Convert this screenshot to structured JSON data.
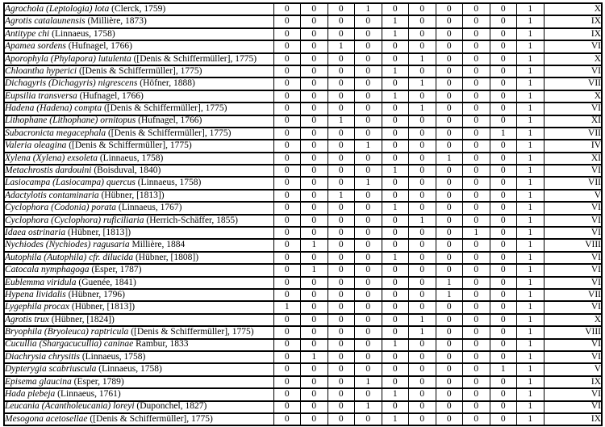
{
  "colors": {
    "text": "#000000",
    "background": "#ffffff",
    "border": "#000000"
  },
  "table": {
    "value_column_count": 10,
    "rows": [
      {
        "taxon": "Agrochola (Leptologia) lota",
        "author": "(Clerck, 1759)",
        "values": [
          0,
          0,
          0,
          1,
          0,
          0,
          0,
          0,
          0,
          1
        ],
        "roman": "X"
      },
      {
        "taxon": "Agrotis catalaunensis",
        "author": "(Millière, 1873)",
        "values": [
          0,
          0,
          0,
          0,
          1,
          0,
          0,
          0,
          0,
          1
        ],
        "roman": "IX"
      },
      {
        "taxon": "Antitype chi",
        "author": "(Linnaeus, 1758)",
        "values": [
          0,
          0,
          0,
          0,
          1,
          0,
          0,
          0,
          0,
          1
        ],
        "roman": "IX"
      },
      {
        "taxon": "Apamea sordens",
        "author": "(Hufnagel, 1766)",
        "values": [
          0,
          0,
          1,
          0,
          0,
          0,
          0,
          0,
          0,
          1
        ],
        "roman": "VI"
      },
      {
        "taxon": "Aporophyla (Phylapora) lutulenta",
        "author": "([Denis & Schiffermüller], 1775)",
        "values": [
          0,
          0,
          0,
          0,
          0,
          1,
          0,
          0,
          0,
          1
        ],
        "roman": "X"
      },
      {
        "taxon": "Chloantha hyperici",
        "author": "([Denis & Schiffermüller], 1775)",
        "values": [
          0,
          0,
          0,
          0,
          1,
          0,
          0,
          0,
          0,
          1
        ],
        "roman": "VI"
      },
      {
        "taxon": "Dichagyris (Dichagyris) nigrescens",
        "author": "(Höfner, 1888)",
        "values": [
          0,
          0,
          0,
          0,
          0,
          1,
          0,
          0,
          0,
          1
        ],
        "roman": "VII"
      },
      {
        "taxon": "Eupsilia transversa",
        "author": "(Hufnagel, 1766)",
        "values": [
          0,
          0,
          0,
          0,
          1,
          0,
          0,
          0,
          0,
          1
        ],
        "roman": "X"
      },
      {
        "taxon": "Hadena (Hadena) compta",
        "author": "([Denis & Schiffermüller], 1775)",
        "values": [
          0,
          0,
          0,
          0,
          0,
          1,
          0,
          0,
          0,
          1
        ],
        "roman": "VI"
      },
      {
        "taxon": "Lithophane (Lithophane) ornitopus",
        "author": "(Hufnagel, 1766)",
        "values": [
          0,
          0,
          1,
          0,
          0,
          0,
          0,
          0,
          0,
          1
        ],
        "roman": "XI"
      },
      {
        "taxon": "Subacronicta megacephala",
        "author": "([Denis & Schiffermüller], 1775)",
        "values": [
          0,
          0,
          0,
          0,
          0,
          0,
          0,
          0,
          1,
          1
        ],
        "roman": "VII"
      },
      {
        "taxon": "Valeria oleagina",
        "author": "([Denis & Schiffermüller], 1775)",
        "values": [
          0,
          0,
          0,
          1,
          0,
          0,
          0,
          0,
          0,
          1
        ],
        "roman": "IV"
      },
      {
        "taxon": "Xylena (Xylena) exsoleta",
        "author": "(Linnaeus, 1758)",
        "values": [
          0,
          0,
          0,
          0,
          0,
          0,
          1,
          0,
          0,
          1
        ],
        "roman": "XI"
      },
      {
        "taxon": "Metachrostis dardouini",
        "author": "(Boisduval, 1840)",
        "values": [
          0,
          0,
          0,
          0,
          1,
          0,
          0,
          0,
          0,
          1
        ],
        "roman": "VI"
      },
      {
        "taxon": "Lasiocampa (Lasiocampa) quercus",
        "author": "(Linnaeus, 1758)",
        "values": [
          0,
          0,
          0,
          1,
          0,
          0,
          0,
          0,
          0,
          1
        ],
        "roman": "VII"
      },
      {
        "taxon": "Adactylotis contaminaria",
        "author": "(Hübner, [1813])",
        "values": [
          0,
          0,
          1,
          0,
          0,
          0,
          0,
          0,
          0,
          1
        ],
        "roman": "V"
      },
      {
        "taxon": "Cyclophora (Codonia) porata",
        "author": "(Linnaeus, 1767)",
        "values": [
          0,
          0,
          0,
          0,
          1,
          0,
          0,
          0,
          0,
          1
        ],
        "roman": "VI"
      },
      {
        "taxon": "Cyclophora (Cyclophora) ruficiliaria",
        "author": "(Herrich-Schäffer, 1855)",
        "values": [
          0,
          0,
          0,
          0,
          0,
          1,
          0,
          0,
          0,
          1
        ],
        "roman": "VI"
      },
      {
        "taxon": "Idaea ostrinaria",
        "author": "(Hübner, [1813])",
        "values": [
          0,
          0,
          0,
          0,
          0,
          0,
          0,
          1,
          0,
          1
        ],
        "roman": "VI"
      },
      {
        "taxon": "Nychiodes (Nychiodes) ragusaria",
        "author": "Millière, 1884",
        "values": [
          0,
          1,
          0,
          0,
          0,
          0,
          0,
          0,
          0,
          1
        ],
        "roman": "VIII"
      },
      {
        "taxon": "Autophila (Autophila) cfr. dilucida",
        "author": "(Hübner, [1808])",
        "values": [
          0,
          0,
          0,
          0,
          1,
          0,
          0,
          0,
          0,
          1
        ],
        "roman": "VI"
      },
      {
        "taxon": "Catocala nymphagoga",
        "author": "(Esper, 1787)",
        "values": [
          0,
          1,
          0,
          0,
          0,
          0,
          0,
          0,
          0,
          1
        ],
        "roman": "VI"
      },
      {
        "taxon": "Eublemma viridula",
        "author": "(Guenée, 1841)",
        "values": [
          0,
          0,
          0,
          0,
          0,
          0,
          1,
          0,
          0,
          1
        ],
        "roman": "VI"
      },
      {
        "taxon": "Hypena lividalis",
        "author": "(Hübner, 1796)",
        "values": [
          0,
          0,
          0,
          0,
          0,
          0,
          1,
          0,
          0,
          1
        ],
        "roman": "VII"
      },
      {
        "taxon": "Lygephila procax",
        "author": "(Hübner, [1813])",
        "values": [
          1,
          0,
          0,
          0,
          0,
          0,
          0,
          0,
          0,
          1
        ],
        "roman": "VI"
      },
      {
        "taxon": "Agrotis trux",
        "author": "(Hübner, [1824])",
        "values": [
          0,
          0,
          0,
          0,
          0,
          1,
          0,
          0,
          0,
          1
        ],
        "roman": "X"
      },
      {
        "taxon": "Bryophila (Bryoleuca) raptricula",
        "author": "([Denis & Schiffermüller], 1775)",
        "values": [
          0,
          0,
          0,
          0,
          0,
          1,
          0,
          0,
          0,
          1
        ],
        "roman": "VIII"
      },
      {
        "taxon": "Cucullia (Shargacucullia) caninae",
        "author": "Rambur, 1833",
        "values": [
          0,
          0,
          0,
          0,
          1,
          0,
          0,
          0,
          0,
          1
        ],
        "roman": "VI"
      },
      {
        "taxon": "Diachrysia chrysitis",
        "author": "(Linnaeus, 1758)",
        "values": [
          0,
          1,
          0,
          0,
          0,
          0,
          0,
          0,
          0,
          1
        ],
        "roman": "VI"
      },
      {
        "taxon": "Dypterygia scabriuscula",
        "author": "(Linnaeus, 1758)",
        "values": [
          0,
          0,
          0,
          0,
          0,
          0,
          0,
          0,
          1,
          1
        ],
        "roman": "V"
      },
      {
        "taxon": "Episema glaucina",
        "author": "(Esper, 1789)",
        "values": [
          0,
          0,
          0,
          1,
          0,
          0,
          0,
          0,
          0,
          1
        ],
        "roman": "IX"
      },
      {
        "taxon": "Hada plebeja",
        "author": "(Linnaeus, 1761)",
        "values": [
          0,
          0,
          0,
          0,
          1,
          0,
          0,
          0,
          0,
          1
        ],
        "roman": "VI"
      },
      {
        "taxon": "Leucania (Acantholeucania) loreyi",
        "author": "(Duponchel, 1827)",
        "values": [
          0,
          0,
          0,
          1,
          0,
          0,
          0,
          0,
          0,
          1
        ],
        "roman": "VI"
      },
      {
        "taxon": "Mesogona acetosellae",
        "author": "([Denis & Schiffermüller], 1775)",
        "values": [
          0,
          0,
          0,
          0,
          1,
          0,
          0,
          0,
          0,
          1
        ],
        "roman": "IX"
      }
    ]
  }
}
